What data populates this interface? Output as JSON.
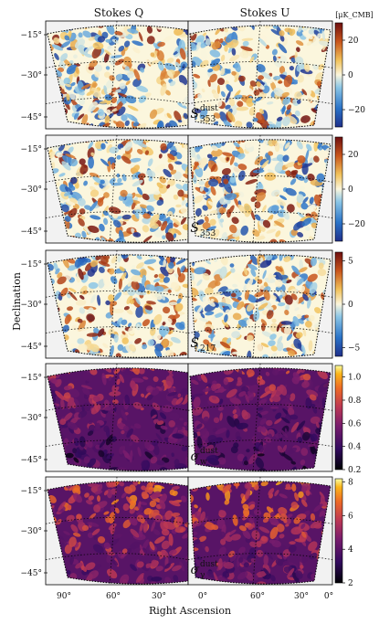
{
  "chart_data": {
    "type": "heatmap",
    "column_titles": [
      "Stokes Q",
      "Stokes U"
    ],
    "xlabel": "Right Ascension",
    "ylabel": "Declination",
    "units_label": "[μK_CMB]",
    "ra_ticks": [
      90,
      60,
      30,
      0
    ],
    "dec_ticks": [
      -15,
      -30,
      -45
    ],
    "ra_tick_labels": [
      "90°",
      "60°",
      "30°",
      "0°"
    ],
    "dec_tick_labels": [
      "−15°",
      "−30°",
      "−45°"
    ],
    "rows": [
      {
        "label_main": "S",
        "label_sub": "353",
        "label_sup": "dust",
        "colormap": "diverging",
        "vmin": -30,
        "vmax": 30,
        "colorbar_ticks": [
          20,
          0,
          -20
        ],
        "colorbar_tick_labels": [
          "20",
          "0",
          "−20"
        ]
      },
      {
        "label_main": "S",
        "label_sub": "353",
        "label_sup": "",
        "colormap": "diverging",
        "vmin": -30,
        "vmax": 30,
        "colorbar_ticks": [
          20,
          0,
          -20
        ],
        "colorbar_tick_labels": [
          "20",
          "0",
          "−20"
        ]
      },
      {
        "label_main": "S",
        "label_sub": "217",
        "label_sup": "",
        "colormap": "diverging",
        "vmin": -6,
        "vmax": 6,
        "colorbar_ticks": [
          5,
          0,
          -5
        ],
        "colorbar_tick_labels": [
          "5",
          "0",
          "−5"
        ]
      },
      {
        "label_main": "σ",
        "label_sub": "w",
        "label_sup": "dust",
        "colormap": "inferno",
        "vmin": 0.2,
        "vmax": 1.1,
        "colorbar_ticks": [
          1.0,
          0.8,
          0.6,
          0.4,
          0.2
        ],
        "colorbar_tick_labels": [
          "1.0",
          "0.8",
          "0.6",
          "0.4",
          "0.2"
        ]
      },
      {
        "label_main": "σ",
        "label_sub": "γ",
        "label_sup": "dust",
        "colormap": "inferno",
        "vmin": 2,
        "vmax": 8.2,
        "colorbar_ticks": [
          8,
          6,
          4,
          2
        ],
        "colorbar_tick_labels": [
          "8",
          "6",
          "4",
          "2"
        ]
      }
    ]
  }
}
